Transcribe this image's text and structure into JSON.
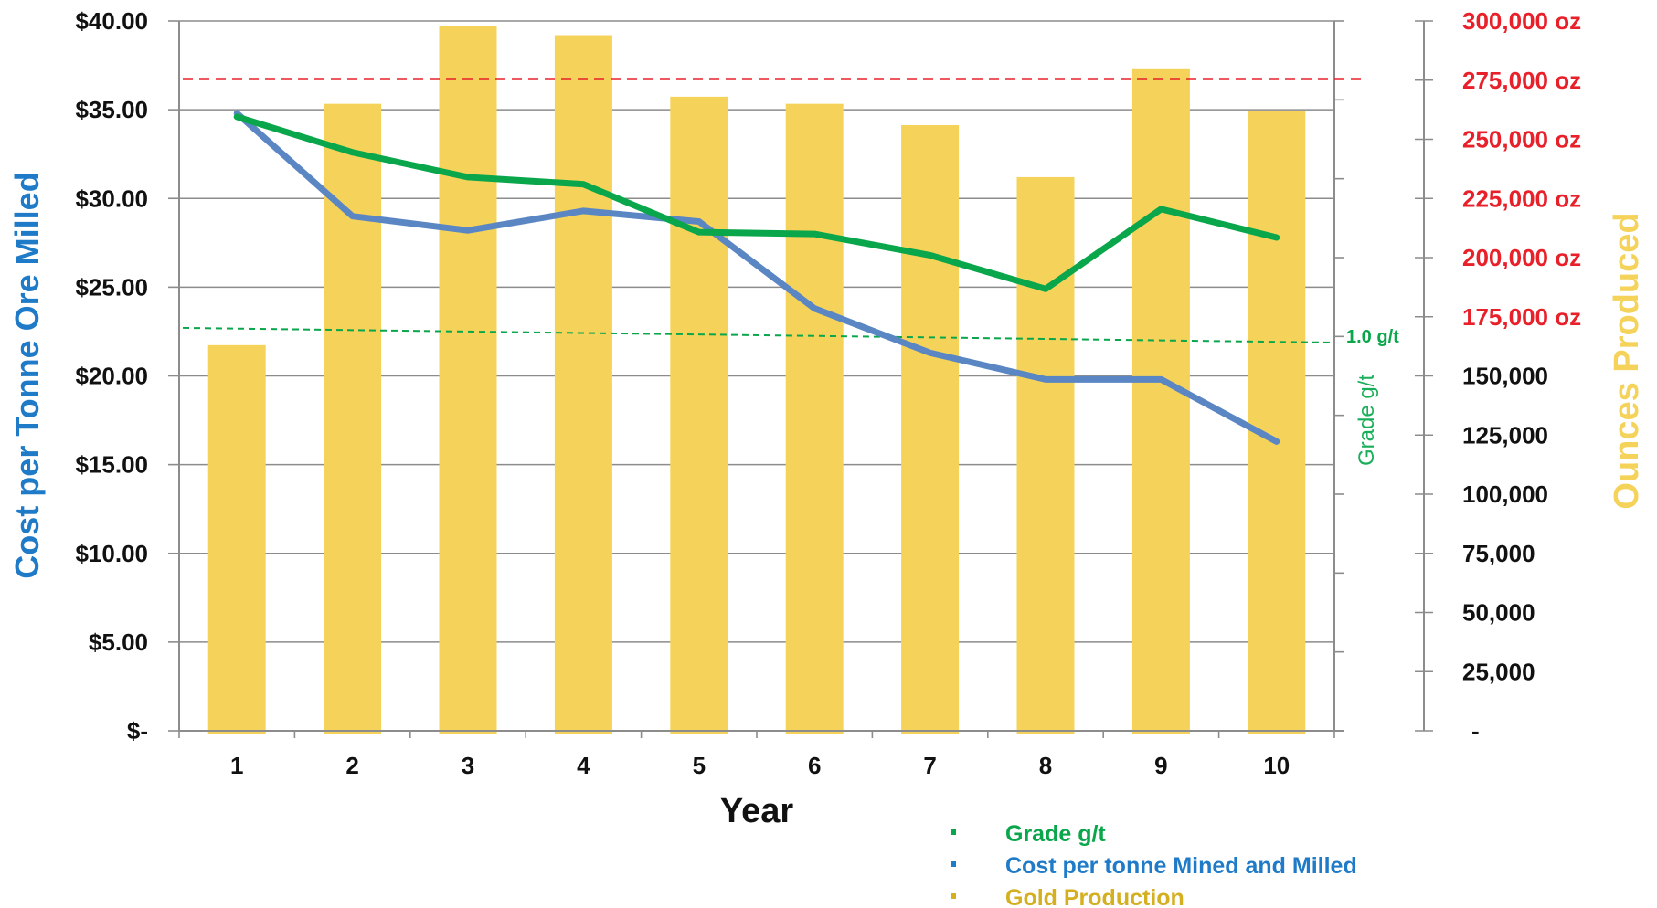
{
  "chart_data": {
    "type": "bar",
    "categories": [
      "1",
      "2",
      "3",
      "4",
      "5",
      "6",
      "7",
      "8",
      "9",
      "10"
    ],
    "xlabel": "Year",
    "ylabel_left": "Cost per Tonne Ore Milled",
    "ylabel_grade": "Grade g/t",
    "ylabel_right": "Ounces Produced",
    "ylim_left": [
      0,
      40
    ],
    "ylim_right": [
      0,
      300000
    ],
    "left_ticks": [
      "$-",
      "$5.00",
      "$10.00",
      "$15.00",
      "$20.00",
      "$25.00",
      "$30.00",
      "$35.00",
      "$40.00"
    ],
    "right_ticks": [
      "-",
      "25,000",
      "50,000",
      "75,000",
      "100,000",
      "125,000",
      "150,000",
      "175,000 oz",
      "200,000 oz",
      "225,000 oz",
      "250,000 oz",
      "275,000 oz",
      "300,000 oz"
    ],
    "grid": true,
    "legend_position": "bottom-right",
    "series": [
      {
        "name": "Gold Production",
        "type": "bar",
        "axis": "right",
        "color": "#F5D35A",
        "values": [
          163000,
          265000,
          298000,
          294000,
          268000,
          265000,
          256000,
          234000,
          280000,
          262000
        ]
      },
      {
        "name": "Cost per tonne Mined and Milled",
        "type": "line",
        "axis": "left",
        "color": "#5B86C4",
        "values": [
          34.8,
          29.0,
          28.2,
          29.3,
          28.7,
          23.8,
          21.3,
          19.8,
          19.8,
          16.3
        ]
      },
      {
        "name": "Grade g/t",
        "type": "line",
        "axis": "grade",
        "color": "#0AA64B",
        "values": [
          34.6,
          32.6,
          31.2,
          30.8,
          28.1,
          28.0,
          26.8,
          24.9,
          29.4,
          27.8
        ]
      }
    ],
    "reference_lines": [
      {
        "axis": "right",
        "value": 275500,
        "color": "#E8202A",
        "style": "dashed",
        "label": ""
      },
      {
        "axis": "left",
        "value": 22.5,
        "color": "#0AA64B",
        "style": "dashed",
        "label": "1.0 g/t"
      }
    ],
    "legend": [
      {
        "label": "Grade g/t",
        "color": "#0AA64B"
      },
      {
        "label": "Cost per tonne Mined and Milled",
        "color": "#1F7BC8"
      },
      {
        "label": "Gold Production",
        "color": "#D4B020"
      }
    ],
    "colors": {
      "left_axis_title": "#1F7BC8",
      "grade_axis_title": "#1AAE5A",
      "right_axis_title": "#F5D35A",
      "oz_ticks": "#E8202A",
      "right_ticks": "#111111"
    }
  }
}
